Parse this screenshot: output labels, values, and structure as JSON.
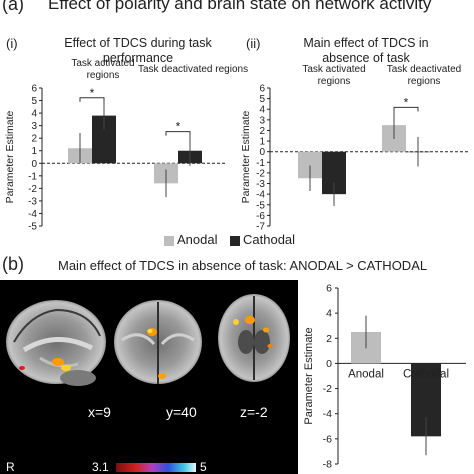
{
  "figure": {
    "panel_a_label": "(a)",
    "panel_a_title": "Effect of polarity and brain state on network activity",
    "panel_b_label": "(b)",
    "panel_b_title": "Main effect of TDCS in absence of task: ANODAL > CATHODAL",
    "legend": {
      "anodal": "Anodal",
      "cathodal": "Cathodal",
      "anodal_color": "#bdbdbd",
      "cathodal_color": "#262626"
    },
    "brain": {
      "slice_labels": [
        "x=9",
        "y=40",
        "z=-2"
      ],
      "side_label": "R",
      "colorbar_min": "3.1",
      "colorbar_max": "5"
    }
  },
  "chart_data": [
    {
      "id": "a-i",
      "type": "bar",
      "panel_label": "(i)",
      "title": "Effect of TDCS during task performance",
      "ylabel": "Parameter Estimate",
      "ylim": [
        -5,
        6
      ],
      "yticks": [
        -5,
        -4,
        -3,
        -2,
        -1,
        0,
        1,
        2,
        3,
        4,
        5,
        6
      ],
      "categories": [
        "Task activated regions",
        "Task deactivated regions"
      ],
      "series": [
        {
          "name": "Anodal",
          "color": "#bdbdbd",
          "values": [
            1.2,
            -1.6
          ],
          "error": [
            1.2,
            1.1
          ]
        },
        {
          "name": "Cathodal",
          "color": "#262626",
          "values": [
            3.8,
            1.0
          ],
          "error": [
            1.1,
            1.2
          ]
        }
      ],
      "significance": [
        "*",
        "*"
      ]
    },
    {
      "id": "a-ii",
      "type": "bar",
      "panel_label": "(ii)",
      "title": "Main effect of TDCS in absence of task",
      "ylabel": "Parameter Estimate",
      "ylim": [
        -7,
        6
      ],
      "yticks": [
        -7,
        -6,
        -5,
        -4,
        -3,
        -2,
        -1,
        0,
        1,
        2,
        3,
        4,
        5,
        6
      ],
      "categories": [
        "Task activated regions",
        "Task deactivated regions"
      ],
      "series": [
        {
          "name": "Anodal",
          "color": "#bdbdbd",
          "values": [
            -2.5,
            2.5
          ],
          "error": [
            1.2,
            1.3
          ]
        },
        {
          "name": "Cathodal",
          "color": "#262626",
          "values": [
            -4.0,
            0.0
          ],
          "error": [
            1.1,
            1.4
          ]
        }
      ],
      "significance": [
        "",
        "*"
      ]
    },
    {
      "id": "b",
      "type": "bar",
      "ylabel": "Parameter Estimate",
      "ylim": [
        -8,
        6
      ],
      "yticks": [
        -8,
        -6,
        -4,
        -2,
        0,
        2,
        4,
        6
      ],
      "categories": [
        "Anodal",
        "Cathodal"
      ],
      "values": [
        2.5,
        -5.8
      ],
      "colors": [
        "#bdbdbd",
        "#262626"
      ],
      "error": [
        1.3,
        1.5
      ]
    }
  ]
}
